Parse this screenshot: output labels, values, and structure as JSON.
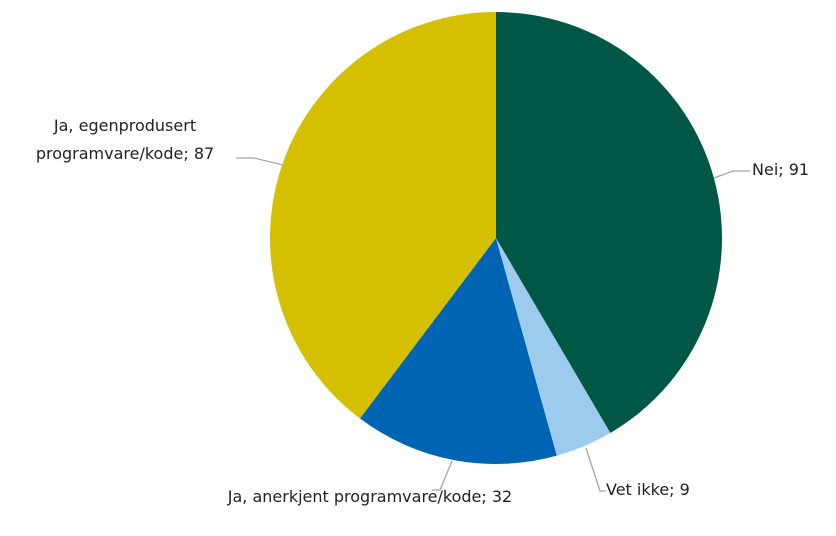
{
  "chart_data": {
    "type": "pie",
    "categories": [
      "Nei",
      "Vet ikke",
      "Ja, anerkjent programvare/kode",
      "Ja, egenprodusert programvare/kode"
    ],
    "values": [
      91,
      9,
      32,
      87
    ],
    "colors": [
      "#005745",
      "#9ccbee",
      "#0064b4",
      "#d4bf00"
    ],
    "label_separator": "; "
  }
}
